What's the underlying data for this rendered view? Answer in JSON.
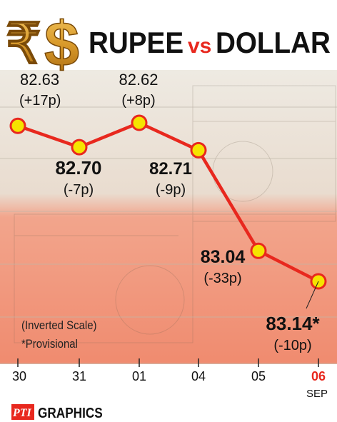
{
  "header": {
    "title_left": "RUPEE",
    "title_mid": "vs",
    "title_right": "DOLLAR",
    "rupee_symbol": "₹",
    "dollar_symbol": "$"
  },
  "notes": {
    "scale_note": "(Inverted Scale)",
    "provisional_note": "*Provisional"
  },
  "footer": {
    "logo_text": "PTI",
    "graphics_text": "GRAPHICS"
  },
  "colors": {
    "line": "#e8281e",
    "marker": "#f5e400",
    "highlight_date": "#e8281e",
    "panel": "#f28a70"
  },
  "chart_data": {
    "type": "line",
    "title": "RUPEE vs DOLLAR",
    "y_scale": "inverted",
    "ylim": [
      82.55,
      83.2
    ],
    "categories": [
      "30",
      "31",
      "01",
      "04",
      "05",
      "06"
    ],
    "month_label": "SEP",
    "values": [
      82.63,
      82.7,
      82.62,
      82.71,
      83.04,
      83.14
    ],
    "value_labels": [
      "82.63",
      "82.70",
      "82.62",
      "82.71",
      "83.04",
      "83.14*"
    ],
    "change_labels": [
      "(+17p)",
      "(-7p)",
      "(+8p)",
      "(-9p)",
      "(-33p)",
      "(-10p)"
    ],
    "highlight_index": 5
  }
}
